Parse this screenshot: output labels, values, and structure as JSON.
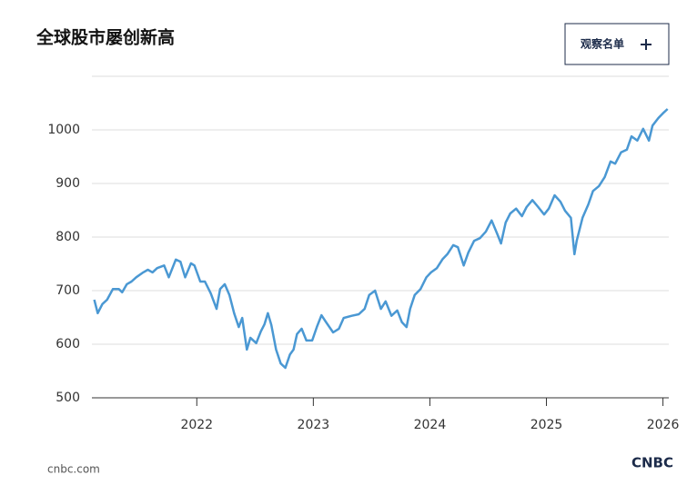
{
  "chart_data": {
    "type": "line",
    "title": "全球股市屡创新高",
    "x": [
      2021.12,
      2021.15,
      2021.19,
      2021.23,
      2021.28,
      2021.33,
      2021.36,
      2021.4,
      2021.44,
      2021.48,
      2021.54,
      2021.58,
      2021.62,
      2021.66,
      2021.72,
      2021.76,
      2021.82,
      2021.86,
      2021.9,
      2021.95,
      2021.98,
      2022.03,
      2022.07,
      2022.12,
      2022.17,
      2022.2,
      2022.24,
      2022.28,
      2022.32,
      2022.36,
      2022.39,
      2022.43,
      2022.46,
      2022.51,
      2022.55,
      2022.58,
      2022.61,
      2022.64,
      2022.68,
      2022.72,
      2022.76,
      2022.8,
      2022.83,
      2022.86,
      2022.9,
      2022.94,
      2022.99,
      2023.03,
      2023.07,
      2023.11,
      2023.17,
      2023.22,
      2023.26,
      2023.33,
      2023.39,
      2023.44,
      2023.48,
      2023.53,
      2023.58,
      2023.62,
      2023.67,
      2023.72,
      2023.76,
      2023.8,
      2023.83,
      2023.87,
      2023.92,
      2023.97,
      2024.01,
      2024.06,
      2024.11,
      2024.15,
      2024.2,
      2024.24,
      2024.29,
      2024.33,
      2024.38,
      2024.43,
      2024.48,
      2024.53,
      2024.58,
      2024.61,
      2024.65,
      2024.69,
      2024.74,
      2024.79,
      2024.83,
      2024.88,
      2024.93,
      2024.98,
      2025.02,
      2025.07,
      2025.12,
      2025.16,
      2025.21,
      2025.24,
      2025.26,
      2025.31,
      2025.36,
      2025.4,
      2025.45,
      2025.5,
      2025.55,
      2025.59,
      2025.64,
      2025.69,
      2025.73,
      2025.78,
      2025.83,
      2025.88,
      2025.91,
      2025.96,
      2026.0,
      2026.04
    ],
    "series": [
      {
        "color": "#4a98d3",
        "values": [
          683,
          658,
          675,
          683,
          703,
          703,
          697,
          712,
          717,
          725,
          734,
          739,
          734,
          742,
          747,
          725,
          758,
          754,
          725,
          751,
          747,
          717,
          717,
          695,
          666,
          703,
          712,
          692,
          658,
          632,
          649,
          590,
          612,
          602,
          624,
          637,
          658,
          636,
          590,
          564,
          556,
          581,
          590,
          619,
          629,
          607,
          607,
          632,
          654,
          641,
          622,
          629,
          649,
          653,
          656,
          666,
          692,
          700,
          666,
          680,
          653,
          663,
          641,
          632,
          666,
          692,
          703,
          725,
          734,
          742,
          759,
          768,
          785,
          781,
          747,
          771,
          793,
          798,
          810,
          831,
          805,
          788,
          827,
          844,
          853,
          839,
          856,
          869,
          856,
          842,
          853,
          878,
          866,
          849,
          836,
          768,
          793,
          836,
          861,
          886,
          895,
          912,
          941,
          937,
          958,
          963,
          988,
          980,
          1002,
          980,
          1008,
          1022,
          1031,
          1039
        ]
      }
    ],
    "xlim": [
      2021.1,
      2026.05
    ],
    "xticks": [
      2022,
      2023,
      2024,
      2025,
      2026
    ],
    "ylim": [
      500,
      1100
    ],
    "yticks": [
      500,
      600,
      700,
      800,
      900,
      1000
    ],
    "grid": true
  },
  "watchlist_button": "观察名单",
  "source": "cnbc.com",
  "logo": "CNBC"
}
